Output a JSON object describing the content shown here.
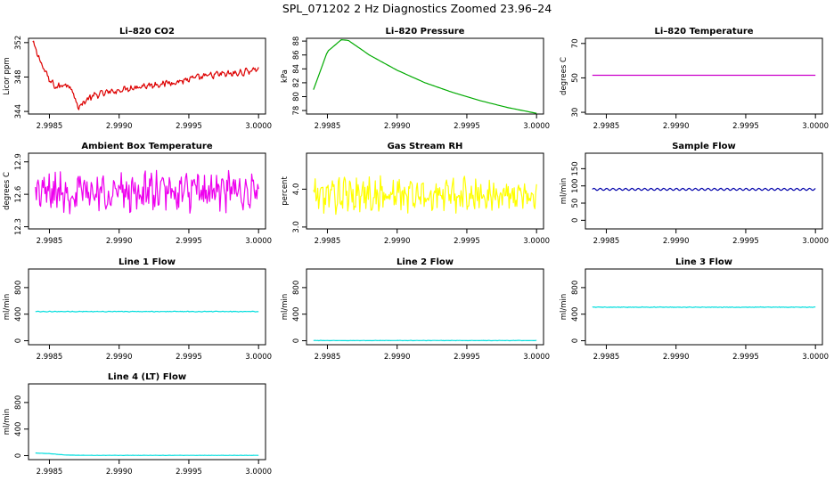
{
  "page": {
    "title": "SPL_071202  2 Hz Diagnostics Zoomed 23.96–24"
  },
  "chart_data": [
    {
      "type": "line",
      "title": "Li–820 CO2",
      "ylabel": "Licor ppm",
      "xlim": [
        2.99835,
        3.00005
      ],
      "ylim": [
        343.7,
        352.5
      ],
      "xticks": [
        2.9985,
        2.999,
        2.9995,
        3.0
      ],
      "xtick_labels": [
        "2.9985",
        "2.9990",
        "2.9995",
        "3.0000"
      ],
      "yticks": [
        344,
        348,
        352
      ],
      "ytick_labels": [
        "344",
        "348",
        "352"
      ],
      "series": [
        {
          "color": "#dd0000",
          "x": [
            2.99838,
            2.99845,
            2.9985,
            2.99855,
            2.99862,
            2.99867,
            2.9987,
            2.99878,
            2.99885,
            2.99895,
            2.9991,
            2.99925,
            2.9994,
            2.99955,
            2.9997,
            2.99985,
            3.0
          ],
          "y": [
            352.0,
            349.3,
            347.6,
            346.8,
            347.2,
            346.5,
            344.4,
            345.5,
            346.0,
            346.3,
            346.8,
            347.1,
            347.4,
            347.9,
            348.3,
            348.4,
            349.0
          ],
          "noise": 0.6
        }
      ]
    },
    {
      "type": "line",
      "title": "Li–820 Pressure",
      "ylabel": "kPa",
      "xlim": [
        2.99835,
        3.00005
      ],
      "ylim": [
        77.5,
        88.4
      ],
      "xticks": [
        2.9985,
        2.999,
        2.9995,
        3.0
      ],
      "xtick_labels": [
        "2.9985",
        "2.9990",
        "2.9995",
        "3.0000"
      ],
      "yticks": [
        78,
        80,
        82,
        84,
        86,
        88
      ],
      "ytick_labels": [
        "78",
        "80",
        "82",
        "84",
        "86",
        "88"
      ],
      "series": [
        {
          "color": "#00aa00",
          "x": [
            2.9984,
            2.9985,
            2.9986,
            2.99865,
            2.9988,
            2.999,
            2.9992,
            2.9994,
            2.9996,
            2.9998,
            3.0
          ],
          "y": [
            81.0,
            86.5,
            88.2,
            88.1,
            86.0,
            83.8,
            82.0,
            80.6,
            79.4,
            78.4,
            77.6
          ]
        }
      ]
    },
    {
      "type": "line",
      "title": "Li–820 Temperature",
      "ylabel": "degrees C",
      "xlim": [
        2.99835,
        3.00005
      ],
      "ylim": [
        29,
        73
      ],
      "xticks": [
        2.9985,
        2.999,
        2.9995,
        3.0
      ],
      "xtick_labels": [
        "2.9985",
        "2.9990",
        "2.9995",
        "3.0000"
      ],
      "yticks": [
        30,
        50,
        70
      ],
      "ytick_labels": [
        "30",
        "50",
        "70"
      ],
      "series": [
        {
          "color": "#cc00cc",
          "x": [
            2.9984,
            3.0
          ],
          "y": [
            51.5,
            51.5
          ]
        }
      ]
    },
    {
      "type": "line",
      "title": "Ambient Box Temperature",
      "ylabel": "degrees C",
      "xlim": [
        2.99835,
        3.00005
      ],
      "ylim": [
        12.28,
        12.98
      ],
      "xticks": [
        2.9985,
        2.999,
        2.9995,
        3.0
      ],
      "xtick_labels": [
        "2.9985",
        "2.9990",
        "2.9995",
        "3.0000"
      ],
      "yticks": [
        12.3,
        12.6,
        12.9
      ],
      "ytick_labels": [
        "12.3",
        "12.6",
        "12.9"
      ],
      "series": [
        {
          "color": "#ee00ee",
          "x": [
            2.9984,
            3.0
          ],
          "y": [
            12.62,
            12.62
          ],
          "noise": 0.28
        }
      ]
    },
    {
      "type": "line",
      "title": "Gas Stream RH",
      "ylabel": "percent",
      "xlim": [
        2.99835,
        3.00005
      ],
      "ylim": [
        2.95,
        4.95
      ],
      "xticks": [
        2.9985,
        2.999,
        2.9995,
        3.0
      ],
      "xtick_labels": [
        "2.9985",
        "2.9990",
        "2.9995",
        "3.0000"
      ],
      "yticks": [
        3.0,
        4.0
      ],
      "ytick_labels": [
        "3.0",
        "4.0"
      ],
      "series": [
        {
          "color": "#ffff00",
          "x": [
            2.9984,
            3.0
          ],
          "y": [
            3.85,
            3.85
          ],
          "noise": 0.7
        }
      ]
    },
    {
      "type": "line",
      "title": "Sample Flow",
      "ylabel": "ml/min",
      "xlim": [
        2.99835,
        3.00005
      ],
      "ylim": [
        -25,
        195
      ],
      "xticks": [
        2.9985,
        2.999,
        2.9995,
        3.0
      ],
      "xtick_labels": [
        "2.9985",
        "2.9990",
        "2.9995",
        "3.0000"
      ],
      "yticks": [
        0,
        50,
        100,
        150
      ],
      "ytick_labels": [
        "0",
        "50",
        "100",
        "150"
      ],
      "series": [
        {
          "color": "#0000aa",
          "x": [
            2.9984,
            3.0
          ],
          "y": [
            90,
            90
          ],
          "wave": 3
        }
      ]
    },
    {
      "type": "line",
      "title": "Line 1 Flow",
      "ylabel": "ml/min",
      "xlim": [
        2.99835,
        3.00005
      ],
      "ylim": [
        -60,
        1080
      ],
      "xticks": [
        2.9985,
        2.999,
        2.9995,
        3.0
      ],
      "xtick_labels": [
        "2.9985",
        "2.9990",
        "2.9995",
        "3.0000"
      ],
      "yticks": [
        0,
        400,
        800
      ],
      "ytick_labels": [
        "0",
        "400",
        "800"
      ],
      "series": [
        {
          "color": "#00dddd",
          "x": [
            2.9984,
            3.0
          ],
          "y": [
            440,
            440
          ],
          "noise": 8
        }
      ]
    },
    {
      "type": "line",
      "title": "Line 2 Flow",
      "ylabel": "ml/min",
      "xlim": [
        2.99835,
        3.00005
      ],
      "ylim": [
        -60,
        1080
      ],
      "xticks": [
        2.9985,
        2.999,
        2.9995,
        3.0
      ],
      "xtick_labels": [
        "2.9985",
        "2.9990",
        "2.9995",
        "3.0000"
      ],
      "yticks": [
        0,
        400,
        800
      ],
      "ytick_labels": [
        "0",
        "400",
        "800"
      ],
      "series": [
        {
          "color": "#00dddd",
          "x": [
            2.9984,
            3.0
          ],
          "y": [
            3,
            3
          ],
          "noise": 4
        }
      ]
    },
    {
      "type": "line",
      "title": "Line 3 Flow",
      "ylabel": "ml/min",
      "xlim": [
        2.99835,
        3.00005
      ],
      "ylim": [
        -60,
        1080
      ],
      "xticks": [
        2.9985,
        2.999,
        2.9995,
        3.0
      ],
      "xtick_labels": [
        "2.9985",
        "2.9990",
        "2.9995",
        "3.0000"
      ],
      "yticks": [
        0,
        400,
        800
      ],
      "ytick_labels": [
        "0",
        "400",
        "800"
      ],
      "series": [
        {
          "color": "#00dddd",
          "x": [
            2.9984,
            3.0
          ],
          "y": [
            505,
            505
          ],
          "noise": 8
        }
      ]
    },
    {
      "type": "line",
      "title": "Line 4 (LT) Flow",
      "ylabel": "ml/min",
      "xlim": [
        2.99835,
        3.00005
      ],
      "ylim": [
        -60,
        1080
      ],
      "xticks": [
        2.9985,
        2.999,
        2.9995,
        3.0
      ],
      "xtick_labels": [
        "2.9985",
        "2.9990",
        "2.9995",
        "3.0000"
      ],
      "yticks": [
        0,
        400,
        800
      ],
      "ytick_labels": [
        "0",
        "400",
        "800"
      ],
      "series": [
        {
          "color": "#00dddd",
          "x": [
            2.9984,
            2.9985,
            2.99862,
            2.9988,
            3.0
          ],
          "y": [
            40,
            30,
            8,
            4,
            4
          ],
          "noise": 3
        }
      ]
    }
  ]
}
